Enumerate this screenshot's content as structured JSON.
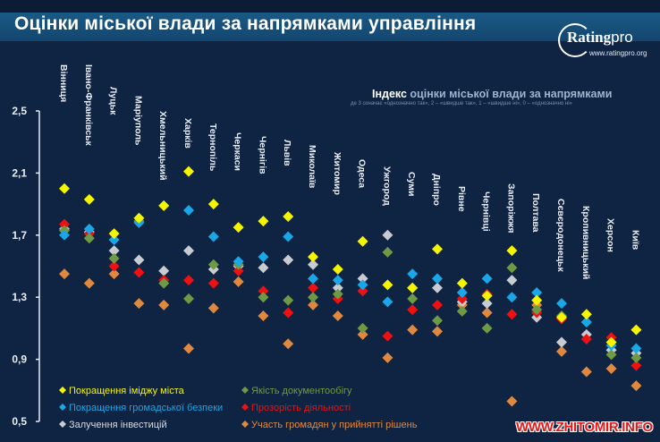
{
  "header": {
    "title": "Оцінки міської влади за напрямками управління",
    "logo_main": "Rating",
    "logo_pro": "pro",
    "logo_url": "www.ratingpro.org"
  },
  "watermark": "WWW.ZHITOMIR.INFO",
  "chart_data": {
    "type": "scatter",
    "title": "Індекс оцінки міської влади за напрямками",
    "title_bold_part": "Індекс",
    "title_rest": " оцінки міської влади за напрямками",
    "subtitle": "де 3 означає «однозначно так», 2 – «швидше так», 1 – «швидше ні», 0 – «однозначно ні»",
    "xlabel": "",
    "ylabel": "",
    "ylim": [
      0.5,
      2.5
    ],
    "yticks": [
      "2,5",
      "2,1",
      "1,7",
      "1,3",
      "0,9",
      "0,5"
    ],
    "ytick_values": [
      2.5,
      2.1,
      1.7,
      1.3,
      0.9,
      0.5
    ],
    "grid": false,
    "legend_position": "bottom-left",
    "categories": [
      "Вінниця",
      "Івано-Франківськ",
      "Луцьк",
      "Маріуполь",
      "Хмельницький",
      "Харків",
      "Тернопіль",
      "Черкаси",
      "Чернігів",
      "Львів",
      "Миколаїв",
      "Житомир",
      "Одеса",
      "Ужгород",
      "Суми",
      "Дніпро",
      "Рівне",
      "Чернівці",
      "Запоріжжя",
      "Полтава",
      "Сєвєродонецьк",
      "Кропивницький",
      "Херсон",
      "Київ"
    ],
    "series": [
      {
        "name": "Покращення іміджу міста",
        "color": "#f5f500",
        "values": [
          2.0,
          1.93,
          1.71,
          1.81,
          1.89,
          2.11,
          1.9,
          1.75,
          1.79,
          1.82,
          1.56,
          1.48,
          1.66,
          1.38,
          1.36,
          1.61,
          1.39,
          1.31,
          1.6,
          1.28,
          1.17,
          1.19,
          1.01,
          1.09
        ]
      },
      {
        "name": "Якість документообігу",
        "color": "#6f9a45",
        "values": [
          1.73,
          1.68,
          1.55,
          1.79,
          1.39,
          1.29,
          1.51,
          1.51,
          1.3,
          1.28,
          1.3,
          1.32,
          1.1,
          1.59,
          1.29,
          1.15,
          1.21,
          1.1,
          1.49,
          1.22,
          1.18,
          1.14,
          0.93,
          0.91
        ]
      },
      {
        "name": "Покращення громадської безпеки",
        "color": "#1aa7e8",
        "values": [
          1.7,
          1.74,
          1.67,
          1.78,
          1.89,
          1.86,
          1.69,
          1.53,
          1.56,
          1.69,
          1.42,
          1.41,
          1.38,
          1.27,
          1.45,
          1.42,
          1.33,
          1.42,
          1.3,
          1.33,
          1.26,
          1.14,
          0.99,
          0.97
        ]
      },
      {
        "name": "Прозорість діяльності",
        "color": "#ee1111",
        "values": [
          1.77,
          1.71,
          1.5,
          1.46,
          1.41,
          1.41,
          1.39,
          1.47,
          1.34,
          1.2,
          1.36,
          1.29,
          1.34,
          1.05,
          1.22,
          1.25,
          1.29,
          1.32,
          1.19,
          1.2,
          1.16,
          1.03,
          1.04,
          0.86
        ]
      },
      {
        "name": "Залучення інвестицій",
        "color": "#c8cbd0",
        "values": [
          1.74,
          1.72,
          1.6,
          1.54,
          1.47,
          1.6,
          1.48,
          1.5,
          1.49,
          1.54,
          1.51,
          1.36,
          1.42,
          1.7,
          1.36,
          1.36,
          1.27,
          1.26,
          1.41,
          1.17,
          1.01,
          1.06,
          0.96,
          0.94
        ]
      },
      {
        "name": "Участь громадян у прийнятті рішень",
        "color": "#e0893e",
        "values": [
          1.45,
          1.39,
          1.45,
          1.26,
          1.25,
          0.97,
          1.23,
          1.4,
          1.18,
          1.0,
          1.25,
          1.18,
          1.06,
          0.91,
          1.09,
          1.08,
          1.25,
          1.2,
          0.63,
          1.25,
          0.95,
          0.82,
          0.84,
          0.73
        ]
      }
    ]
  }
}
